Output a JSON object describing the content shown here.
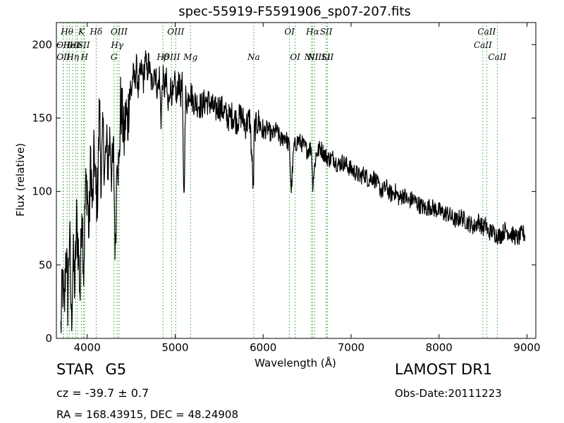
{
  "chart_data": {
    "type": "line",
    "title": "spec-55919-F5591906_sp07-207.fits",
    "xlabel": "Wavelength (Å)",
    "ylabel": "Flux (relative)",
    "xlim": [
      3650,
      9100
    ],
    "ylim": [
      0,
      215
    ],
    "xticks": [
      4000,
      5000,
      6000,
      7000,
      8000,
      9000
    ],
    "yticks": [
      0,
      50,
      100,
      150,
      200
    ],
    "grid": false,
    "series": [
      {
        "color": "#000000",
        "x": [
          3700,
          3720,
          3740,
          3760,
          3780,
          3800,
          3820,
          3840,
          3860,
          3880,
          3900,
          3920,
          3940,
          3960,
          3980,
          4000,
          4020,
          4040,
          4060,
          4080,
          4100,
          4120,
          4140,
          4160,
          4180,
          4200,
          4220,
          4240,
          4260,
          4280,
          4300,
          4320,
          4340,
          4360,
          4380,
          4400,
          4420,
          4440,
          4460,
          4480,
          4500,
          4520,
          4540,
          4560,
          4580,
          4600,
          4620,
          4640,
          4660,
          4680,
          4700,
          4720,
          4740,
          4760,
          4780,
          4800,
          4820,
          4840,
          4860,
          4880,
          4900,
          4920,
          4940,
          4960,
          4980,
          5000,
          5020,
          5040,
          5060,
          5080,
          5100,
          5120,
          5140,
          5160,
          5180,
          5200,
          5250,
          5300,
          5350,
          5400,
          5450,
          5500,
          5550,
          5600,
          5650,
          5700,
          5750,
          5800,
          5850,
          5890,
          5900,
          5950,
          6000,
          6050,
          6100,
          6150,
          6200,
          6250,
          6300,
          6320,
          6350,
          6400,
          6450,
          6500,
          6550,
          6563,
          6600,
          6650,
          6700,
          6750,
          6800,
          6850,
          6900,
          6950,
          7000,
          7050,
          7100,
          7150,
          7200,
          7250,
          7300,
          7350,
          7400,
          7450,
          7500,
          7550,
          7600,
          7650,
          7700,
          7750,
          7800,
          7850,
          7900,
          7950,
          8000,
          8050,
          8100,
          8150,
          8200,
          8250,
          8300,
          8350,
          8400,
          8450,
          8500,
          8542,
          8550,
          8600,
          8662,
          8700,
          8750,
          8800,
          8850,
          8900,
          8950,
          8980
        ],
        "y": [
          5,
          40,
          15,
          65,
          25,
          75,
          10,
          55,
          35,
          80,
          60,
          30,
          95,
          45,
          100,
          105,
          70,
          125,
          85,
          130,
          95,
          100,
          160,
          105,
          140,
          115,
          130,
          120,
          140,
          110,
          125,
          55,
          135,
          110,
          160,
          150,
          135,
          155,
          145,
          170,
          165,
          180,
          175,
          185,
          170,
          178,
          183,
          175,
          192,
          180,
          188,
          177,
          172,
          185,
          178,
          168,
          179,
          150,
          178,
          170,
          175,
          155,
          172,
          168,
          163,
          175,
          160,
          178,
          165,
          172,
          95,
          165,
          160,
          170,
          167,
          162,
          160,
          158,
          162,
          160,
          155,
          158,
          155,
          150,
          152,
          148,
          152,
          145,
          150,
          100,
          142,
          148,
          140,
          143,
          138,
          142,
          135,
          138,
          130,
          100,
          130,
          135,
          132,
          128,
          130,
          105,
          125,
          130,
          125,
          122,
          123,
          118,
          120,
          118,
          115,
          113,
          110,
          112,
          108,
          110,
          105,
          100,
          103,
          98,
          100,
          95,
          98,
          93,
          95,
          92,
          90,
          88,
          90,
          88,
          87,
          85,
          85,
          82,
          80,
          83,
          80,
          78,
          76,
          80,
          75,
          78,
          72,
          73,
          70,
          70,
          74,
          72,
          70,
          68,
          72,
          70
        ],
        "noise": 6
      }
    ],
    "lines": [
      {
        "w": 3727,
        "row": 2,
        "label": "OII"
      },
      {
        "w": 3729,
        "row": 3,
        "label": "OII"
      },
      {
        "w": 3771,
        "row": 1,
        "label": "Hθ"
      },
      {
        "w": 3798,
        "row": 2,
        "label": "He"
      },
      {
        "w": 3835,
        "row": 3,
        "label": "Hη"
      },
      {
        "w": 3869,
        "row": 2,
        "label": "He"
      },
      {
        "w": 3889,
        "row": 2,
        "label": "I"
      },
      {
        "w": 3934,
        "row": 1,
        "label": "K"
      },
      {
        "w": 3960,
        "row": 2,
        "label": "SII"
      },
      {
        "w": 3969,
        "row": 3,
        "label": "H"
      },
      {
        "w": 4102,
        "row": 1,
        "label": "Hδ"
      },
      {
        "w": 4305,
        "row": 4,
        "label": "G"
      },
      {
        "w": 4341,
        "row": 2,
        "label": "Hγ"
      },
      {
        "w": 4363,
        "row": 1,
        "label": "OIII"
      },
      {
        "w": 4861,
        "row": 4,
        "label": "Hβ"
      },
      {
        "w": 4959,
        "row": 3,
        "label": "OIII"
      },
      {
        "w": 5007,
        "row": 1,
        "label": "OIII"
      },
      {
        "w": 5175,
        "row": 4,
        "label": "Mg"
      },
      {
        "w": 5893,
        "row": 3,
        "label": "Na"
      },
      {
        "w": 6300,
        "row": 1,
        "label": "OI"
      },
      {
        "w": 6364,
        "row": 4,
        "label": "OI"
      },
      {
        "w": 6548,
        "row": 3,
        "label": "NII"
      },
      {
        "w": 6563,
        "row": 1,
        "label": "Hα"
      },
      {
        "w": 6584,
        "row": 4,
        "label": "NII"
      },
      {
        "w": 6717,
        "row": 1,
        "label": "SII"
      },
      {
        "w": 6716,
        "row": 3,
        "label": "Li"
      },
      {
        "w": 6731,
        "row": 4,
        "label": "SII"
      },
      {
        "w": 8498,
        "row": 2,
        "label": "CaII"
      },
      {
        "w": 8542,
        "row": 1,
        "label": "CaII"
      },
      {
        "w": 8662,
        "row": 4,
        "label": "CaII"
      }
    ]
  },
  "info": {
    "class": "STAR",
    "subclass": "G5",
    "cz": "cz = -39.7  ± 0.7",
    "radec": "RA = 168.43915, DEC = 48.24908",
    "survey": "LAMOST DR1",
    "obsdate": "Obs-Date:20111223"
  }
}
